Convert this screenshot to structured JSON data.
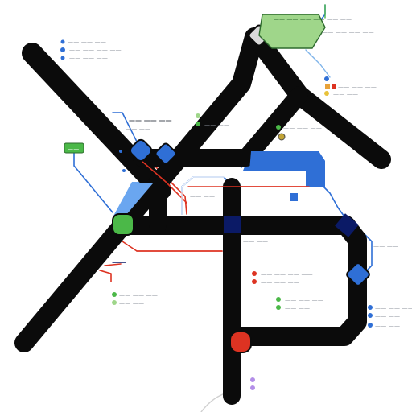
{
  "map": {
    "colors": {
      "background": "#ffffff",
      "main_line": "#0b0b0b",
      "blue_line": "#2f6fd6",
      "blue_fill": "#3b7ee8",
      "light_blue_fill": "#6aa6f0",
      "red_line": "#dd3322",
      "navy": "#0b1a66",
      "green": "#4bb848",
      "pale_green": "#9fd68a",
      "purple": "#b38ee8",
      "gray_text": "#8a8f98",
      "node_gray": "#d9d9d9"
    },
    "labels": {
      "top_green_box": "—— —— —— ——",
      "top_right_word": "—— ——",
      "top_right_sub": "—— —— —— ——",
      "left_green_tag": "——",
      "left_cluster_title": "—— —— ——",
      "center_upper_title": "—— —— ——",
      "right_upper_title": "—— —— —— ——",
      "right_mid_title": "—— —— ——",
      "right_mid2_title": "—— —— ——",
      "lower_center_title": "—— —— —— ——",
      "lower_left_title": "—— —— ——",
      "bottom_title": "—— —— —— ——",
      "bottom_right_title": "—— —— ——",
      "center_tag": "—— ——"
    },
    "legend_items": [
      {
        "icon": "blue-dot",
        "text": "—— —— ——"
      },
      {
        "icon": "blue-dot",
        "text": "—— —— —— ——"
      },
      {
        "icon": "blue-dot",
        "text": "—— —— ——"
      },
      {
        "icon": "red-dot",
        "text": "—— —— —— ——"
      },
      {
        "icon": "red-dot",
        "text": "—— —— ——"
      },
      {
        "icon": "green-dot",
        "text": "—— —— ——"
      },
      {
        "icon": "green-dot",
        "text": "—— ——"
      },
      {
        "icon": "purple-dot",
        "text": "—— —— —— ——"
      },
      {
        "icon": "purple-dot",
        "text": "—— —— ——"
      }
    ]
  }
}
